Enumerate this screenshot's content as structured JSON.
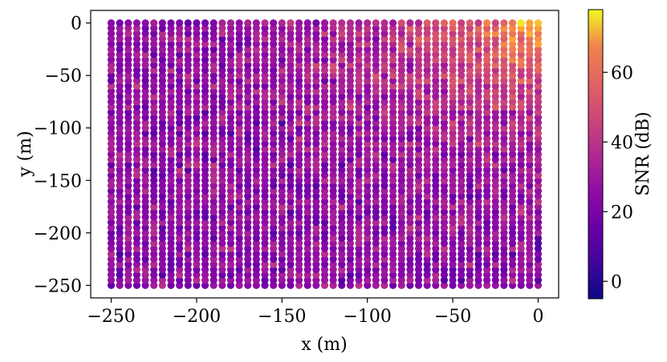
{
  "chart_data": {
    "type": "heatmap",
    "title": "",
    "xlabel": "x (m)",
    "ylabel": "y (m)",
    "xlim": [
      -262,
      12
    ],
    "ylim": [
      -262,
      12
    ],
    "xticks": [
      -250,
      -200,
      -150,
      -100,
      -50,
      0
    ],
    "yticks": [
      0,
      -50,
      -100,
      -150,
      -200,
      -250
    ],
    "xtick_labels": [
      "−250",
      "−200",
      "−150",
      "−100",
      "−50",
      "0"
    ],
    "ytick_labels": [
      "0",
      "−50",
      "−100",
      "−150",
      "−200",
      "−250"
    ],
    "grid": false,
    "scatter_grid": {
      "x_range": [
        -250,
        0
      ],
      "y_range": [
        -250,
        0
      ],
      "step": 5
    },
    "snr_model": {
      "description": "SNR estimated from color; noisy field with hotspot near the top-right corner (x=0, y=0)",
      "peak_db": 70,
      "background_db": 22,
      "noise_db": 9
    },
    "colorbar": {
      "label": "SNR (dB)",
      "colormap": "plasma",
      "range": [
        -5,
        78
      ],
      "ticks": [
        0,
        20,
        40,
        60
      ],
      "tick_labels": [
        "0",
        "20",
        "40",
        "60"
      ]
    }
  }
}
